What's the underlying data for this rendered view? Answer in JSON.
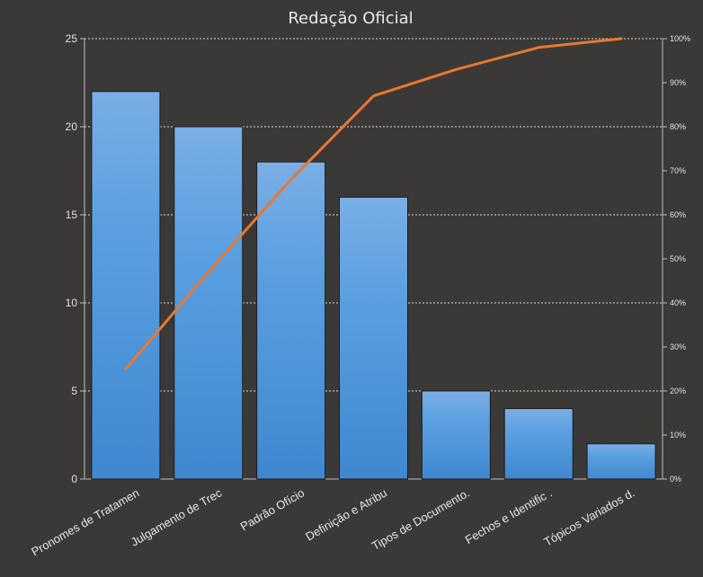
{
  "chart_data": {
    "type": "bar",
    "title": "Redação Oficial",
    "categories": [
      "Pronomes  de Tratamen",
      "Julgamento de Trec",
      "Padrão Ofício",
      "Definição e Atribu",
      "Tipos de Documento.",
      "Fechos e Identific .",
      "Tópicos Variados d."
    ],
    "series": [
      {
        "type": "bar",
        "values": [
          22,
          20,
          18,
          16,
          5,
          4,
          2
        ],
        "color": "#4f97db",
        "axis": "left"
      },
      {
        "type": "line",
        "values": [
          25,
          47,
          68,
          87,
          93,
          98,
          100
        ],
        "color": "#e9782d",
        "axis": "right"
      }
    ],
    "xlabel": "",
    "ylabel": "",
    "ylim": [
      0,
      25
    ],
    "yticks": [
      "0",
      "5",
      "10",
      "15",
      "20",
      "25"
    ],
    "y2lim": [
      0,
      100
    ],
    "y2ticks": [
      "0%",
      "10%",
      "20%",
      "30%",
      "40%",
      "50%",
      "60%",
      "70%",
      "80%",
      "90%",
      "100%"
    ],
    "grid": true,
    "legend": "none"
  }
}
